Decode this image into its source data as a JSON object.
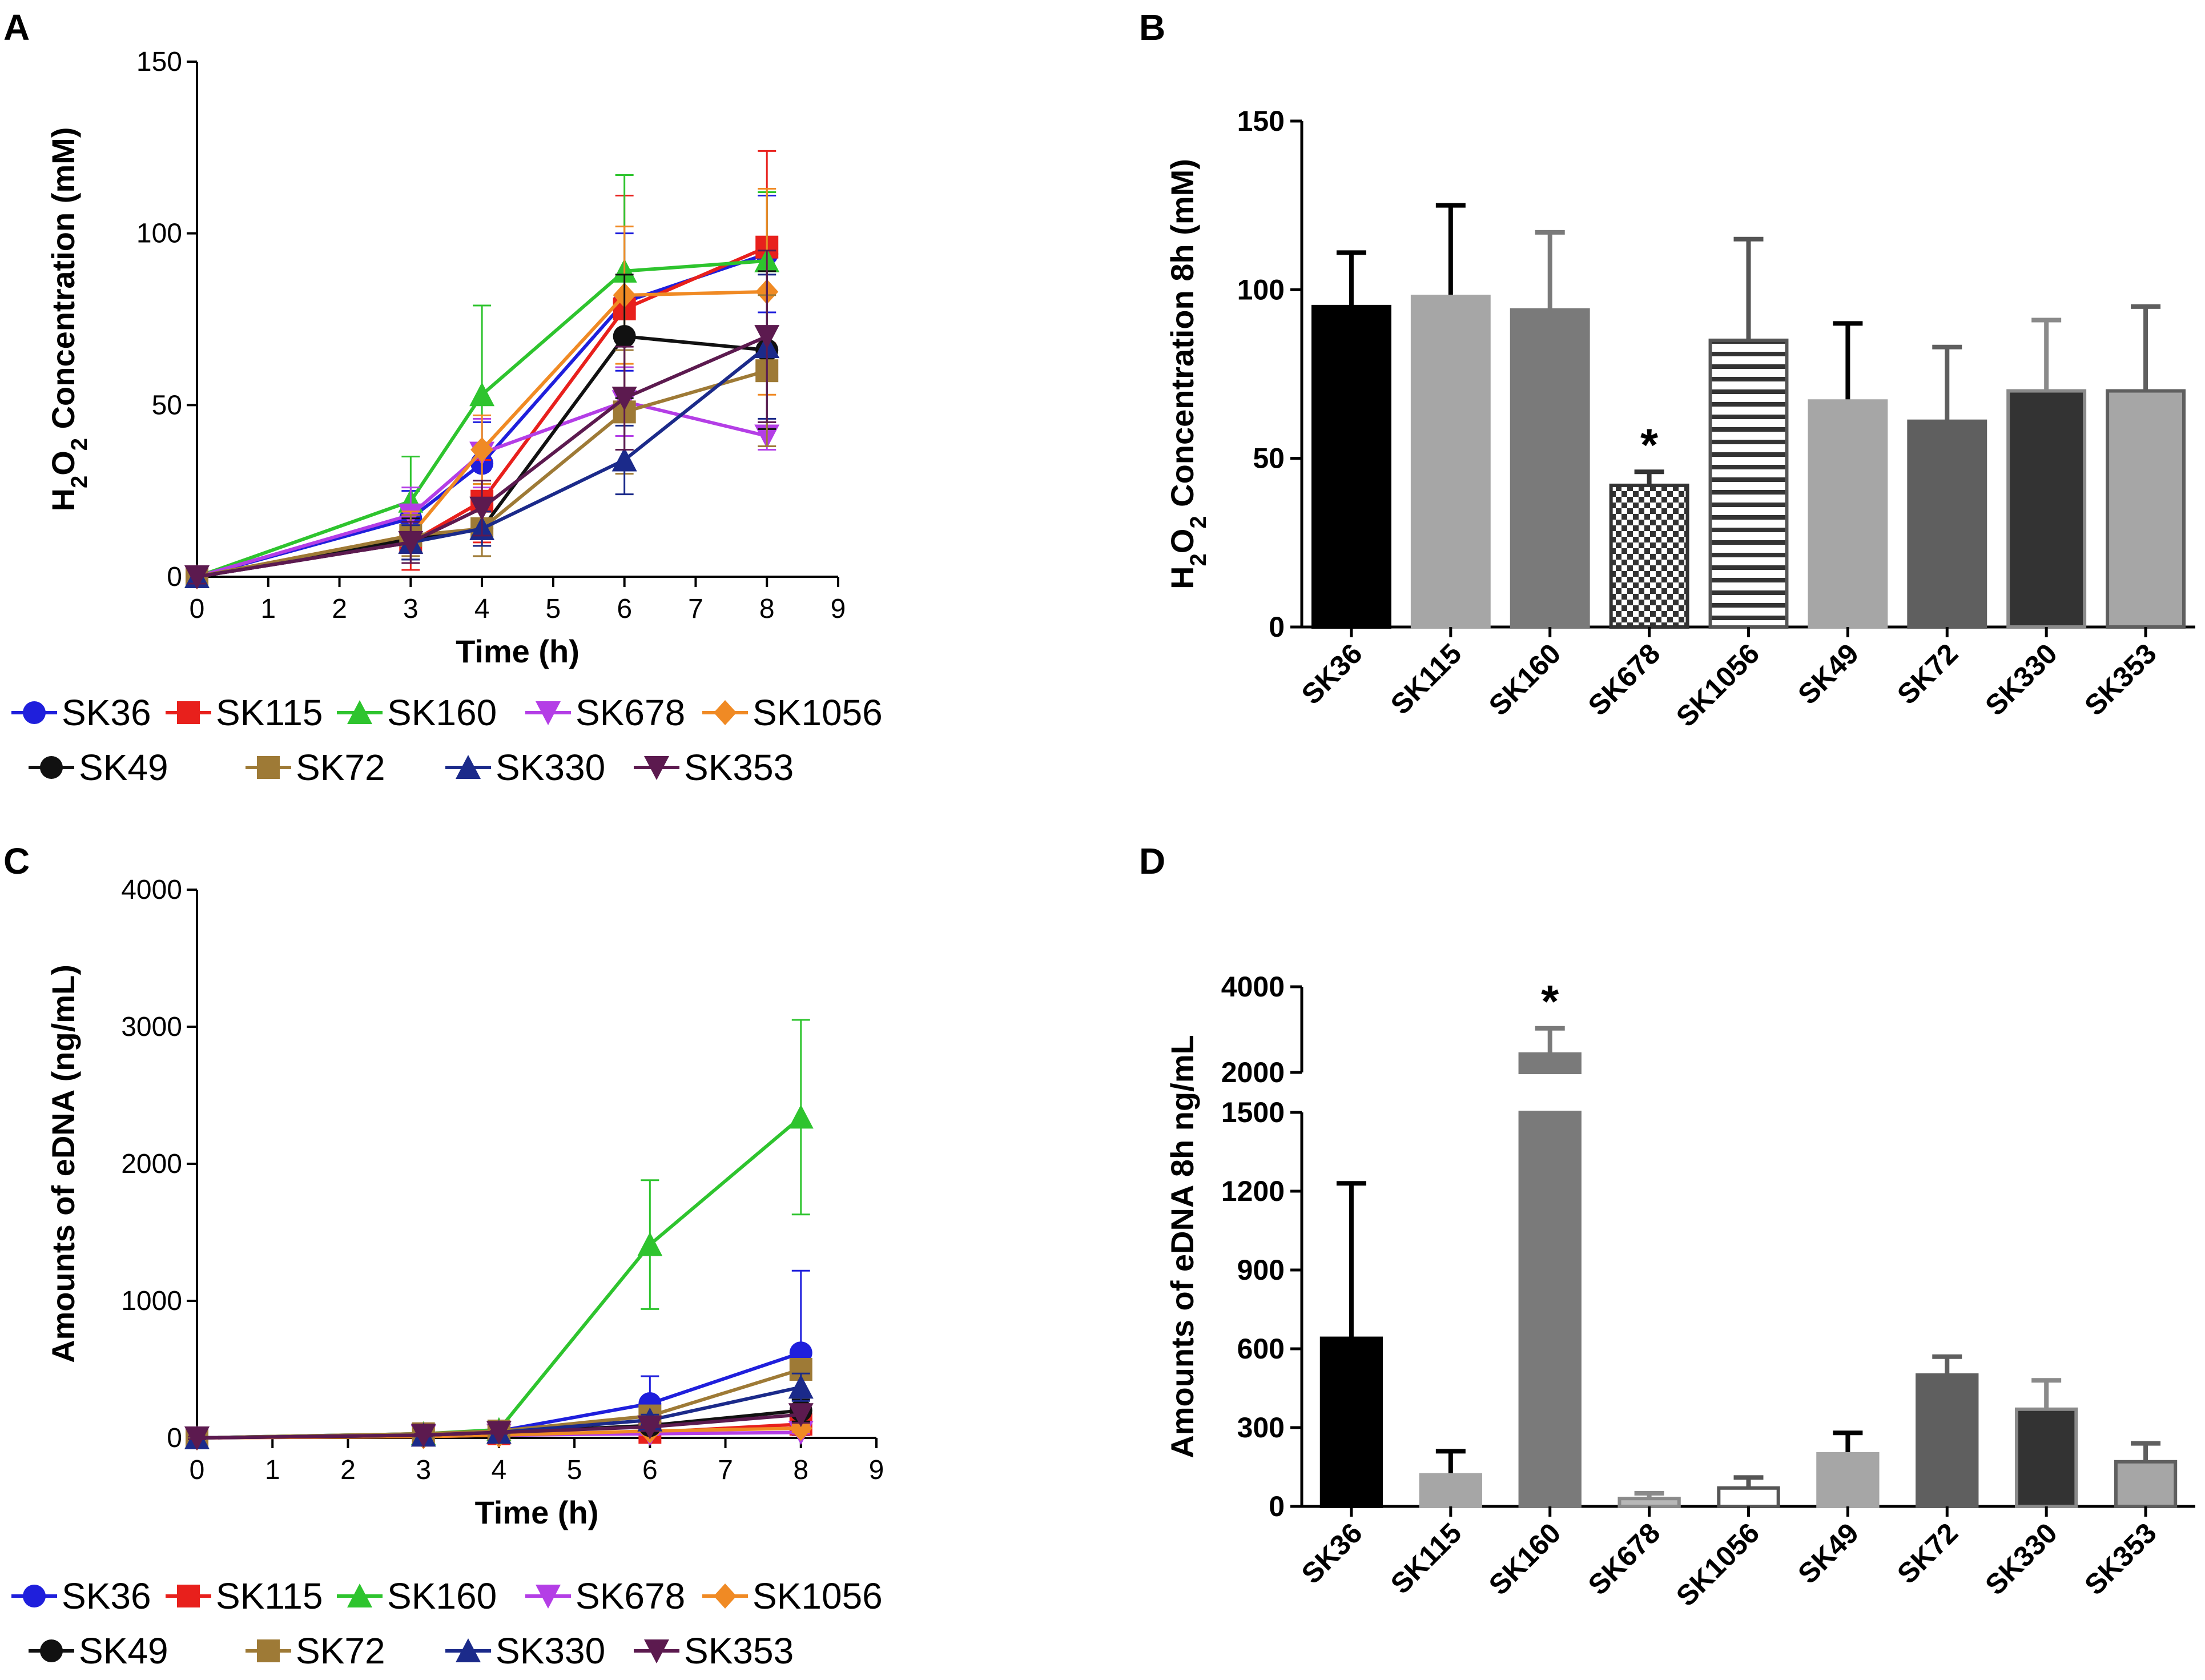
{
  "panels": {
    "A": {
      "letter": "A"
    },
    "B": {
      "letter": "B"
    },
    "C": {
      "letter": "C"
    },
    "D": {
      "letter": "D"
    }
  },
  "chart_data": [
    {
      "id": "A",
      "type": "line",
      "title": "",
      "xlabel": "Time (h)",
      "ylabel_parts": [
        "H",
        "2",
        "O",
        "2",
        " Concentration (mM)"
      ],
      "xlim": [
        0,
        9
      ],
      "ylim": [
        0,
        150
      ],
      "xticks": [
        "0",
        "1",
        "2",
        "3",
        "4",
        "5",
        "6",
        "7",
        "8",
        "9"
      ],
      "yticks": [
        "0",
        "50",
        "100",
        "150"
      ],
      "x": [
        0,
        3,
        4,
        6,
        8
      ],
      "series": [
        {
          "name": "SK36",
          "color": "#1f1fdc",
          "marker": "circle",
          "values": [
            0,
            17,
            33,
            80,
            94
          ],
          "err": [
            2,
            8,
            12,
            20,
            17
          ]
        },
        {
          "name": "SK115",
          "color": "#e8201c",
          "marker": "square",
          "values": [
            0,
            10,
            22,
            78,
            96
          ],
          "err": [
            2,
            8,
            12,
            33,
            28
          ]
        },
        {
          "name": "SK160",
          "color": "#2ec42e",
          "marker": "triangle",
          "values": [
            0,
            22,
            53,
            89,
            92
          ],
          "err": [
            2,
            13,
            26,
            28,
            20
          ]
        },
        {
          "name": "SK678",
          "color": "#b43ee6",
          "marker": "tri-down",
          "values": [
            0,
            18,
            36,
            51,
            41
          ],
          "err": [
            2,
            8,
            10,
            10,
            4
          ]
        },
        {
          "name": "SK1056",
          "color": "#f08a24",
          "marker": "diamond",
          "values": [
            0,
            12,
            37,
            82,
            83
          ],
          "err": [
            2,
            7,
            10,
            20,
            30
          ]
        },
        {
          "name": "SK49",
          "color": "#111111",
          "marker": "circle",
          "values": [
            0,
            11,
            14,
            70,
            66
          ],
          "err": [
            2,
            6,
            5,
            18,
            23
          ]
        },
        {
          "name": "SK72",
          "color": "#9e7a36",
          "marker": "square",
          "values": [
            0,
            12,
            14,
            48,
            60
          ],
          "err": [
            2,
            6,
            8,
            18,
            22
          ]
        },
        {
          "name": "SK330",
          "color": "#1b2a8a",
          "marker": "triangle",
          "values": [
            0,
            10,
            14,
            34,
            67
          ],
          "err": [
            2,
            5,
            5,
            10,
            21
          ]
        },
        {
          "name": "SK353",
          "color": "#5c1a4f",
          "marker": "tri-down",
          "values": [
            0,
            10,
            20,
            52,
            70
          ],
          "err": [
            2,
            6,
            8,
            15,
            25
          ]
        }
      ]
    },
    {
      "id": "B",
      "type": "bar",
      "title": "",
      "xlabel": "",
      "ylabel_parts": [
        "H",
        "2",
        "O",
        "2",
        " Concentration 8h (mM)"
      ],
      "ylim": [
        0,
        150
      ],
      "yticks": [
        "0",
        "50",
        "100",
        "150"
      ],
      "categories": [
        "SK36",
        "SK115",
        "SK160",
        "SK678",
        "SK1056",
        "SK49",
        "SK72",
        "SK330",
        "SK353"
      ],
      "values": [
        95,
        98,
        94,
        42,
        85,
        67,
        61,
        70,
        70
      ],
      "err": [
        16,
        27,
        23,
        4,
        30,
        23,
        22,
        21,
        25
      ],
      "fills": [
        "#000000",
        "#a6a6a6",
        "#7a7a7a",
        "checker",
        "stripes",
        "#a6a6a6",
        "#5f5f5f",
        "#333333",
        "#a6a6a6"
      ],
      "edges": [
        "#000000",
        "#a6a6a6",
        "#7a7a7a",
        "#333333",
        "#555555",
        "#a6a6a6",
        "#5f5f5f",
        "#8a8a8a",
        "#5f5f5f"
      ],
      "significant": [
        "",
        "",
        "",
        "*",
        "",
        "",
        "",
        "",
        ""
      ]
    },
    {
      "id": "C",
      "type": "line",
      "title": "",
      "xlabel": "Time (h)",
      "ylabel": "Amounts of eDNA (ng/mL)",
      "xlim": [
        0,
        9
      ],
      "ylim": [
        0,
        4000
      ],
      "xticks": [
        "0",
        "1",
        "2",
        "3",
        "4",
        "5",
        "6",
        "7",
        "8",
        "9"
      ],
      "yticks": [
        "0",
        "1000",
        "2000",
        "3000",
        "4000"
      ],
      "x": [
        0,
        3,
        4,
        6,
        8
      ],
      "series": [
        {
          "name": "SK36",
          "color": "#1f1fdc",
          "marker": "circle",
          "values": [
            0,
            30,
            50,
            250,
            620
          ],
          "err": [
            10,
            10,
            10,
            200,
            600
          ]
        },
        {
          "name": "SK115",
          "color": "#e8201c",
          "marker": "square",
          "values": [
            0,
            20,
            30,
            40,
            100
          ],
          "err": [
            10,
            10,
            10,
            20,
            40
          ]
        },
        {
          "name": "SK160",
          "color": "#2ec42e",
          "marker": "triangle",
          "values": [
            0,
            30,
            60,
            1410,
            2340
          ],
          "err": [
            10,
            10,
            10,
            470,
            710
          ]
        },
        {
          "name": "SK678",
          "color": "#b43ee6",
          "marker": "tri-down",
          "values": [
            0,
            10,
            20,
            30,
            40
          ],
          "err": [
            5,
            5,
            5,
            10,
            10
          ]
        },
        {
          "name": "SK1056",
          "color": "#f08a24",
          "marker": "diamond",
          "values": [
            0,
            10,
            20,
            50,
            70
          ],
          "err": [
            5,
            5,
            5,
            20,
            30
          ]
        },
        {
          "name": "SK49",
          "color": "#111111",
          "marker": "circle",
          "values": [
            0,
            20,
            40,
            90,
            200
          ],
          "err": [
            10,
            10,
            10,
            30,
            80
          ]
        },
        {
          "name": "SK72",
          "color": "#9e7a36",
          "marker": "square",
          "values": [
            0,
            30,
            50,
            160,
            500
          ],
          "err": [
            10,
            10,
            10,
            40,
            70
          ]
        },
        {
          "name": "SK330",
          "color": "#1b2a8a",
          "marker": "triangle",
          "values": [
            0,
            20,
            40,
            130,
            370
          ],
          "err": [
            10,
            10,
            10,
            40,
            100
          ]
        },
        {
          "name": "SK353",
          "color": "#5c1a4f",
          "marker": "tri-down",
          "values": [
            0,
            20,
            40,
            80,
            170
          ],
          "err": [
            10,
            10,
            10,
            30,
            60
          ]
        }
      ]
    },
    {
      "id": "D",
      "type": "bar",
      "title": "",
      "xlabel": "",
      "ylabel": "Amounts of eDNA  8h ng/mL",
      "axis_break": {
        "lower_ylim": [
          0,
          1500
        ],
        "upper_ylim": [
          2000,
          4000
        ]
      },
      "yticks_lower": [
        "0",
        "300",
        "600",
        "900",
        "1200",
        "1500"
      ],
      "yticks_upper": [
        "2000",
        "4000"
      ],
      "categories": [
        "SK36",
        "SK115",
        "SK160",
        "SK678",
        "SK1056",
        "SK49",
        "SK72",
        "SK330",
        "SK353"
      ],
      "values": [
        640,
        120,
        2430,
        30,
        70,
        200,
        500,
        370,
        170
      ],
      "err": [
        590,
        90,
        600,
        20,
        40,
        80,
        70,
        110,
        70
      ],
      "fills": [
        "#000000",
        "#a6a6a6",
        "#7a7a7a",
        "#b8b8b8",
        "#ffffff",
        "#a6a6a6",
        "#5f5f5f",
        "#333333",
        "#a6a6a6"
      ],
      "edges": [
        "#000000",
        "#a6a6a6",
        "#7a7a7a",
        "#8a8a8a",
        "#555555",
        "#a6a6a6",
        "#5f5f5f",
        "#8a8a8a",
        "#5f5f5f"
      ],
      "significant": [
        "",
        "",
        "*",
        "",
        "",
        "",
        "",
        "",
        ""
      ]
    }
  ]
}
